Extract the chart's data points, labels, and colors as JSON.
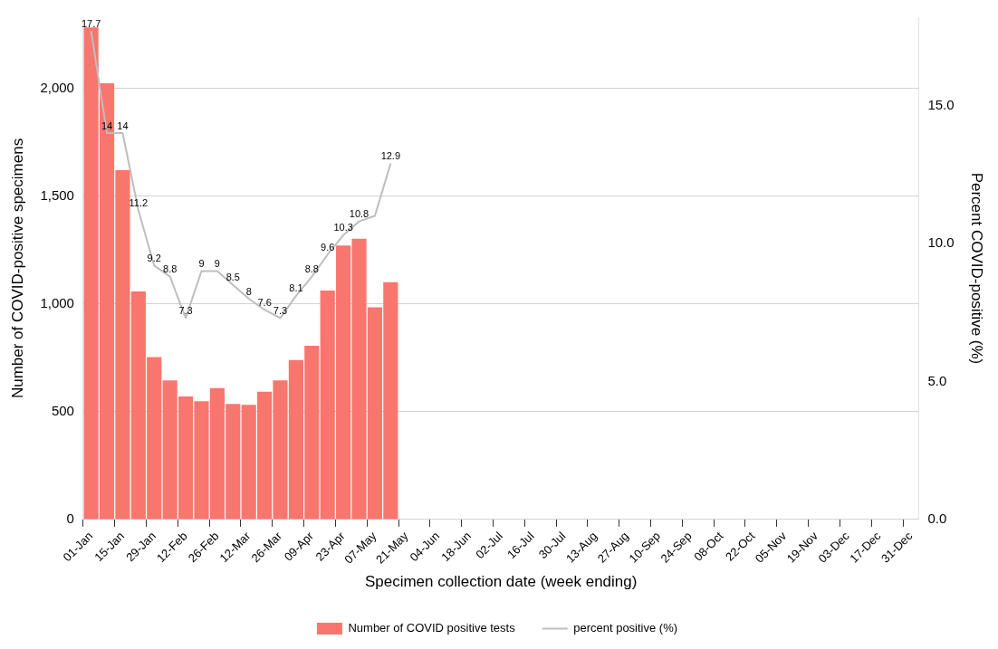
{
  "chart_data": {
    "type": "bar",
    "xlabel": "Specimen collection date (week ending)",
    "ylabel": "Number of COVID-positive specimens",
    "y2label": "Percent COVID-positive (%)",
    "categories": [
      "01-Jan",
      null,
      "15-Jan",
      null,
      "29-Jan",
      null,
      "12-Feb",
      null,
      "26-Feb",
      null,
      "12-Mar",
      null,
      "26-Mar",
      null,
      "09-Apr",
      null,
      "23-Apr",
      null,
      "07-May",
      null,
      "21-May",
      null,
      "04-Jun",
      null,
      "18-Jun",
      null,
      "02-Jul",
      null,
      "16-Jul",
      null,
      "30-Jul",
      null,
      "13-Aug",
      null,
      "27-Aug",
      null,
      "10-Sep",
      null,
      "24-Sep",
      null,
      "08-Oct",
      null,
      "22-Oct",
      null,
      "05-Nov",
      null,
      "19-Nov",
      null,
      "03-Dec",
      null,
      "17-Dec",
      null,
      "31-Dec"
    ],
    "series": [
      {
        "name": "Number of COVID positive tests",
        "type": "bar",
        "color": "#f8766d",
        "values": [
          2283,
          2024,
          1620,
          1058,
          753,
          645,
          571,
          549,
          610,
          536,
          532,
          593,
          645,
          740,
          806,
          1062,
          1271,
          1302,
          984,
          1101,
          null,
          null,
          null,
          null,
          null,
          null,
          null,
          null,
          null,
          null,
          null,
          null,
          null,
          null,
          null,
          null,
          null,
          null,
          null,
          null,
          null,
          null,
          null,
          null,
          null,
          null,
          null,
          null,
          null,
          null,
          null,
          null,
          null
        ]
      },
      {
        "name": "percent positive (%)",
        "type": "line",
        "axis": "y2",
        "color": "#bebebe",
        "values": [
          17.7,
          14,
          14,
          11.2,
          9.2,
          8.8,
          7.3,
          9,
          9,
          8.5,
          8,
          7.6,
          7.3,
          8.1,
          8.8,
          9.6,
          10.3,
          10.8,
          11.0,
          12.9,
          null,
          null,
          null,
          null,
          null,
          null,
          null,
          null,
          null,
          null,
          null,
          null,
          null,
          null,
          null,
          null,
          null,
          null,
          null,
          null,
          null,
          null,
          null,
          null,
          null,
          null,
          null,
          null,
          null,
          null,
          null,
          null,
          null
        ],
        "value_labels": [
          "17.7",
          "14",
          "14",
          "11.2",
          "9.2",
          "8.8",
          "7.3",
          "9",
          "9",
          "8.5",
          "8",
          "7.6",
          "7.3",
          "8.1",
          "8.8",
          "9.6",
          "10.3",
          "10.8",
          null,
          "12.9",
          null,
          null,
          null,
          null,
          null,
          null,
          null,
          null,
          null,
          null,
          null,
          null,
          null,
          null,
          null,
          null,
          null,
          null,
          null,
          null,
          null,
          null,
          null,
          null,
          null,
          null,
          null,
          null,
          null,
          null,
          null,
          null,
          null
        ]
      }
    ],
    "ylim": [
      0,
      2330
    ],
    "yticks": [
      0,
      {
        "value": 500,
        "label": "500"
      },
      {
        "value": 1000,
        "label": "1,000"
      },
      {
        "value": 1500,
        "label": "1,500"
      },
      {
        "value": 2000,
        "label": "2,000"
      }
    ],
    "y2lim": [
      0,
      18.2
    ],
    "y2ticks": [
      {
        "value": 0,
        "label": "0.0"
      },
      {
        "value": 5,
        "label": "5.0"
      },
      {
        "value": 10,
        "label": "10.0"
      },
      {
        "value": 15,
        "label": "15.0"
      }
    ],
    "grid": "y",
    "legend": "bottom",
    "marker": "none"
  }
}
